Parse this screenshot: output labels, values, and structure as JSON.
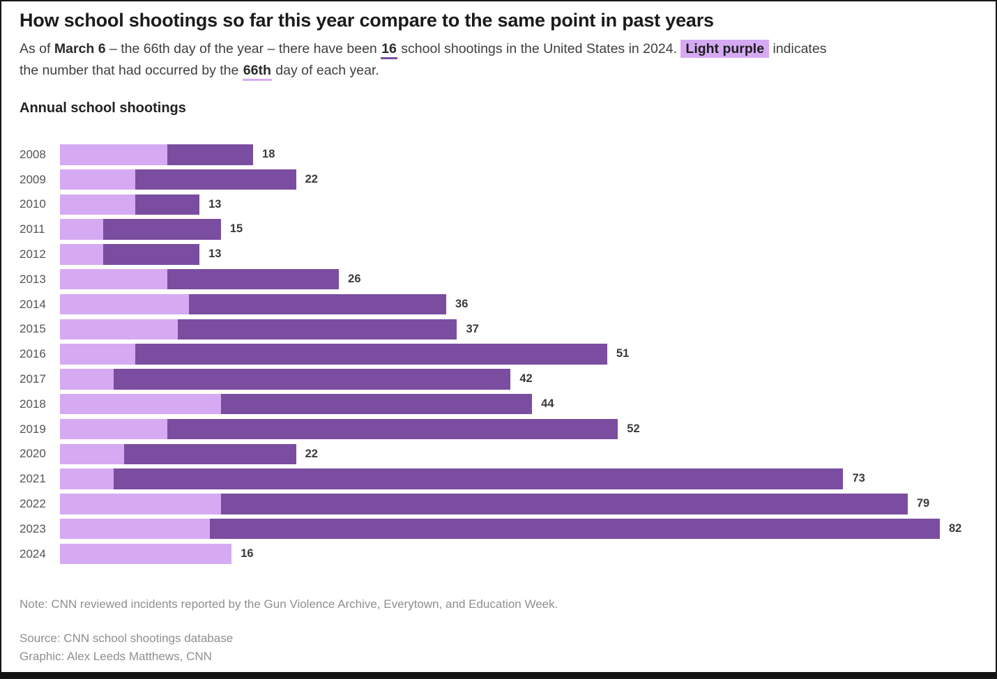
{
  "header": {
    "title": "How school shootings so far this year compare to the same point in past years",
    "subtitle_lines": [
      [
        {
          "text": "As of "
        },
        {
          "text": "March 6",
          "style": "bold"
        },
        {
          "text": " – the 66th day of the year – there have been "
        },
        {
          "text": "16",
          "style": "em-dark"
        },
        {
          "text": " school shootings in the United States in 2024. "
        },
        {
          "text": "Light purple",
          "style": "highlight"
        },
        {
          "text": " indicates"
        }
      ],
      [
        {
          "text": "the number that had occurred by the "
        },
        {
          "text": "66th",
          "style": "em-light"
        },
        {
          "text": " day of each year."
        }
      ]
    ]
  },
  "colors": {
    "light_purple": "#d6aaf3",
    "dark_purple": "#7a4da1",
    "frame": "#161616"
  },
  "chart_data": {
    "type": "bar",
    "orientation": "horizontal",
    "title": "Annual school shootings",
    "categories": [
      "2008",
      "2009",
      "2010",
      "2011",
      "2012",
      "2013",
      "2014",
      "2015",
      "2016",
      "2017",
      "2018",
      "2019",
      "2020",
      "2021",
      "2022",
      "2023",
      "2024"
    ],
    "series": [
      {
        "name": "Shootings by the 66th day of the year",
        "color": "#d6aaf3",
        "values": [
          10,
          7,
          7,
          4,
          4,
          10,
          12,
          11,
          7,
          5,
          15,
          10,
          6,
          5,
          15,
          14,
          16
        ]
      },
      {
        "name": "Total annual shootings",
        "color": "#7a4da1",
        "values": [
          18,
          22,
          13,
          15,
          13,
          26,
          36,
          37,
          51,
          42,
          44,
          52,
          22,
          73,
          79,
          82,
          16
        ]
      }
    ],
    "value_labels": [
      18,
      22,
      13,
      15,
      13,
      26,
      36,
      37,
      51,
      42,
      44,
      52,
      22,
      73,
      79,
      82,
      16
    ],
    "xlim": [
      0,
      82
    ],
    "grid": false,
    "legend": "none (explained in subtitle highlight)"
  },
  "footer": {
    "note": "Note: CNN reviewed incidents reported by the Gun Violence Archive, Everytown, and Education Week.",
    "source": "Source: CNN school shootings database",
    "graphic": "Graphic: Alex Leeds Matthews, CNN"
  }
}
